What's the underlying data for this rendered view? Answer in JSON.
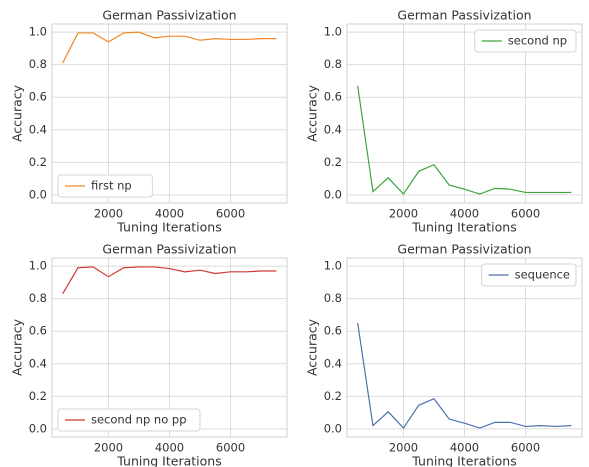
{
  "chart_data": [
    {
      "type": "line",
      "title": "German Passivization",
      "xlabel": "Tuning Iterations",
      "ylabel": "Accuracy",
      "x": [
        500,
        1000,
        1500,
        2000,
        2500,
        3000,
        3500,
        4000,
        4500,
        5000,
        5500,
        6000,
        6500,
        7000,
        7500
      ],
      "series": [
        {
          "name": "first np",
          "color": "#ef8a27",
          "values": [
            0.81,
            0.995,
            0.995,
            0.94,
            0.995,
            1.0,
            0.965,
            0.975,
            0.975,
            0.95,
            0.96,
            0.955,
            0.955,
            0.96,
            0.96
          ]
        }
      ],
      "xlim": [
        150,
        7850
      ],
      "xticks": [
        2000,
        4000,
        6000
      ],
      "ylim": [
        -0.05,
        1.05
      ],
      "yticks": [
        {
          "value": 0,
          "label": "0.0"
        },
        0.2,
        0.4,
        0.6,
        0.8,
        {
          "value": 1,
          "label": "1.0"
        }
      ],
      "grid": true,
      "legend": "lower left"
    },
    {
      "type": "line",
      "title": "German Passivization",
      "xlabel": "Tuning Iterations",
      "ylabel": "Accuracy",
      "x": [
        500,
        1000,
        1500,
        2000,
        2500,
        3000,
        3500,
        4000,
        4500,
        5000,
        5500,
        6000,
        6500,
        7000,
        7500
      ],
      "series": [
        {
          "name": "second np",
          "color": "#3aa63a",
          "values": [
            0.67,
            0.02,
            0.105,
            0.005,
            0.145,
            0.185,
            0.06,
            0.035,
            0.005,
            0.04,
            0.035,
            0.015,
            0.015,
            0.015,
            0.015
          ]
        }
      ],
      "xlim": [
        150,
        7850
      ],
      "xticks": [
        2000,
        4000,
        6000
      ],
      "ylim": [
        -0.05,
        1.05
      ],
      "yticks": [
        {
          "value": 0,
          "label": "0.0"
        },
        0.2,
        0.4,
        0.6,
        0.8,
        {
          "value": 1,
          "label": "1.0"
        }
      ],
      "grid": true,
      "legend": "upper right"
    },
    {
      "type": "line",
      "title": "German Passivization",
      "xlabel": "Tuning Iterations",
      "ylabel": "Accuracy",
      "x": [
        500,
        1000,
        1500,
        2000,
        2500,
        3000,
        3500,
        4000,
        4500,
        5000,
        5500,
        6000,
        6500,
        7000,
        7500
      ],
      "series": [
        {
          "name": "second np no pp",
          "color": "#d13b34",
          "values": [
            0.83,
            0.99,
            0.995,
            0.935,
            0.99,
            0.995,
            0.995,
            0.985,
            0.965,
            0.975,
            0.955,
            0.965,
            0.965,
            0.97,
            0.97
          ]
        }
      ],
      "xlim": [
        150,
        7850
      ],
      "xticks": [
        2000,
        4000,
        6000
      ],
      "ylim": [
        -0.05,
        1.05
      ],
      "yticks": [
        {
          "value": 0,
          "label": "0.0"
        },
        0.2,
        0.4,
        0.6,
        0.8,
        {
          "value": 1,
          "label": "1.0"
        }
      ],
      "grid": true,
      "legend": "lower left"
    },
    {
      "type": "line",
      "title": "German Passivization",
      "xlabel": "Tuning Iterations",
      "ylabel": "Accuracy",
      "x": [
        500,
        1000,
        1500,
        2000,
        2500,
        3000,
        3500,
        4000,
        4500,
        5000,
        5500,
        6000,
        6500,
        7000,
        7500
      ],
      "series": [
        {
          "name": "sequence",
          "color": "#4c72b0",
          "values": [
            0.65,
            0.02,
            0.105,
            0.005,
            0.145,
            0.185,
            0.06,
            0.035,
            0.005,
            0.04,
            0.04,
            0.015,
            0.02,
            0.015,
            0.02
          ]
        }
      ],
      "xlim": [
        150,
        7850
      ],
      "xticks": [
        2000,
        4000,
        6000
      ],
      "ylim": [
        -0.05,
        1.05
      ],
      "yticks": [
        {
          "value": 0,
          "label": "0.0"
        },
        0.2,
        0.4,
        0.6,
        0.8,
        {
          "value": 1,
          "label": "1.0"
        }
      ],
      "grid": true,
      "legend": "upper right"
    }
  ]
}
